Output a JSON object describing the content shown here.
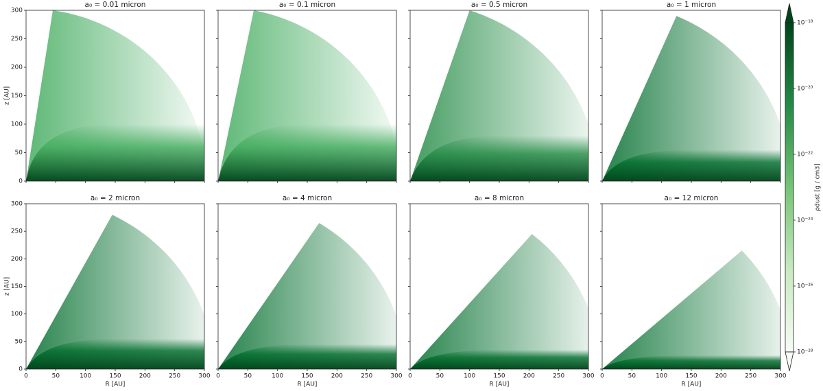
{
  "chart_data": [
    {
      "type": "wedge",
      "title": "a₀ = 0.01 micron",
      "ylabel": "z [AU]",
      "xlim": [
        0,
        300
      ],
      "ylim": [
        0,
        300
      ],
      "yticks": [
        0,
        50,
        100,
        150,
        200,
        250,
        300
      ],
      "cone_tip": [
        45,
        300
      ],
      "disk_height": 100,
      "color": "#41ab5d"
    },
    {
      "type": "wedge",
      "title": "a₀ = 0.1 micron",
      "xlim": [
        0,
        300
      ],
      "ylim": [
        0,
        300
      ],
      "cone_tip": [
        60,
        300
      ],
      "disk_height": 100,
      "color": "#41ab5d"
    },
    {
      "type": "wedge",
      "title": "a₀ = 0.5 micron",
      "xlim": [
        0,
        300
      ],
      "ylim": [
        0,
        300
      ],
      "cone_tip": [
        100,
        300
      ],
      "disk_height": 80,
      "color": "#238b45"
    },
    {
      "type": "wedge",
      "title": "a₀ = 1 micron",
      "xlim": [
        0,
        300
      ],
      "ylim": [
        0,
        300
      ],
      "cone_tip": [
        125,
        290
      ],
      "disk_height": 55,
      "color": "#006d2c"
    },
    {
      "type": "wedge",
      "title": "a₀ = 2 micron",
      "xlabel": "R [AU]",
      "ylabel": "z [AU]",
      "xlim": [
        0,
        300
      ],
      "ylim": [
        0,
        300
      ],
      "xticks": [
        0,
        50,
        100,
        150,
        200,
        250,
        300
      ],
      "yticks": [
        0,
        50,
        100,
        150,
        200,
        250,
        300
      ],
      "cone_tip": [
        145,
        280
      ],
      "disk_height": 55,
      "color": "#006d2c"
    },
    {
      "type": "wedge",
      "title": "a₀ = 4 micron",
      "xlabel": "R [AU]",
      "xlim": [
        0,
        300
      ],
      "ylim": [
        0,
        300
      ],
      "xticks": [
        0,
        50,
        100,
        150,
        200,
        250,
        300
      ],
      "cone_tip": [
        170,
        265
      ],
      "disk_height": 45,
      "color": "#006d2c"
    },
    {
      "type": "wedge",
      "title": "a₀ = 8 micron",
      "xlabel": "R [AU]",
      "xlim": [
        0,
        300
      ],
      "ylim": [
        0,
        300
      ],
      "xticks": [
        0,
        50,
        100,
        150,
        200,
        250,
        300
      ],
      "cone_tip": [
        205,
        245
      ],
      "disk_height": 35,
      "color": "#006d2c"
    },
    {
      "type": "wedge",
      "title": "a₀ = 12 micron",
      "xlabel": "R [AU]",
      "xlim": [
        0,
        300
      ],
      "ylim": [
        0,
        300
      ],
      "xticks": [
        0,
        50,
        100,
        150,
        200,
        250,
        300
      ],
      "cone_tip": [
        235,
        215
      ],
      "disk_height": 25,
      "color": "#006d2c"
    },
    {
      "type": "colorbar",
      "label": "ρdust [g / cm3]",
      "log": true,
      "ylim": [
        1e-28,
        1e-18
      ],
      "yticks": [
        {
          "value": 1e-18,
          "label": "10⁻¹⁸"
        },
        {
          "value": 1e-20,
          "label": "10⁻²⁰"
        },
        {
          "value": 1e-22,
          "label": "10⁻²²"
        },
        {
          "value": 1e-24,
          "label": "10⁻²⁴"
        },
        {
          "value": 1e-26,
          "label": "10⁻²⁶"
        },
        {
          "value": 1e-28,
          "label": "10⁻²⁸"
        }
      ],
      "colors": [
        "#f7fcf5",
        "#c7e9c0",
        "#74c476",
        "#238b45",
        "#00441b"
      ]
    }
  ]
}
